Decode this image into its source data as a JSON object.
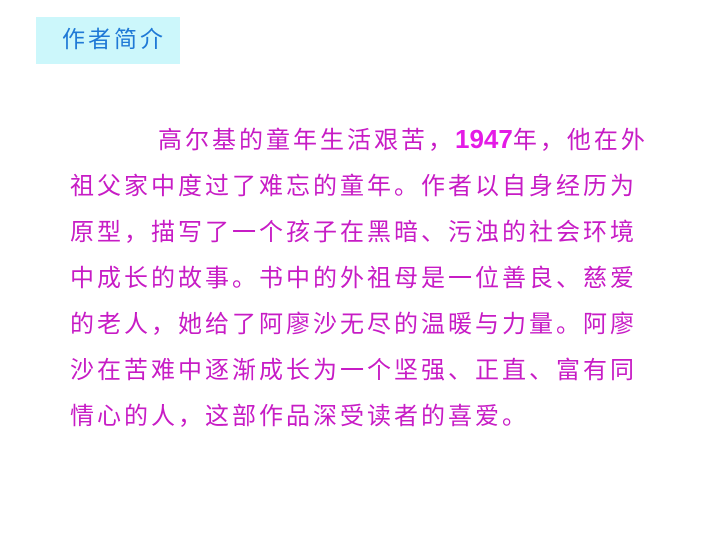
{
  "heading": {
    "label": "作者简介"
  },
  "paragraph": {
    "before_year": "高尔基的童年生活艰苦，",
    "year": "1947",
    "after_year": "年，他在外祖父家中度过了难忘的童年。作者以自身经历为原型，描写了一个孩子在黑暗、污浊的社会环境中成长的故事。书中的外祖母是一位善良、慈爱的老人，她给了阿廖沙无尽的温暖与力量。阿廖沙在苦难中逐渐成长为一个坚强、正直、富有同情心的人，这部作品深受读者的喜爱。"
  }
}
